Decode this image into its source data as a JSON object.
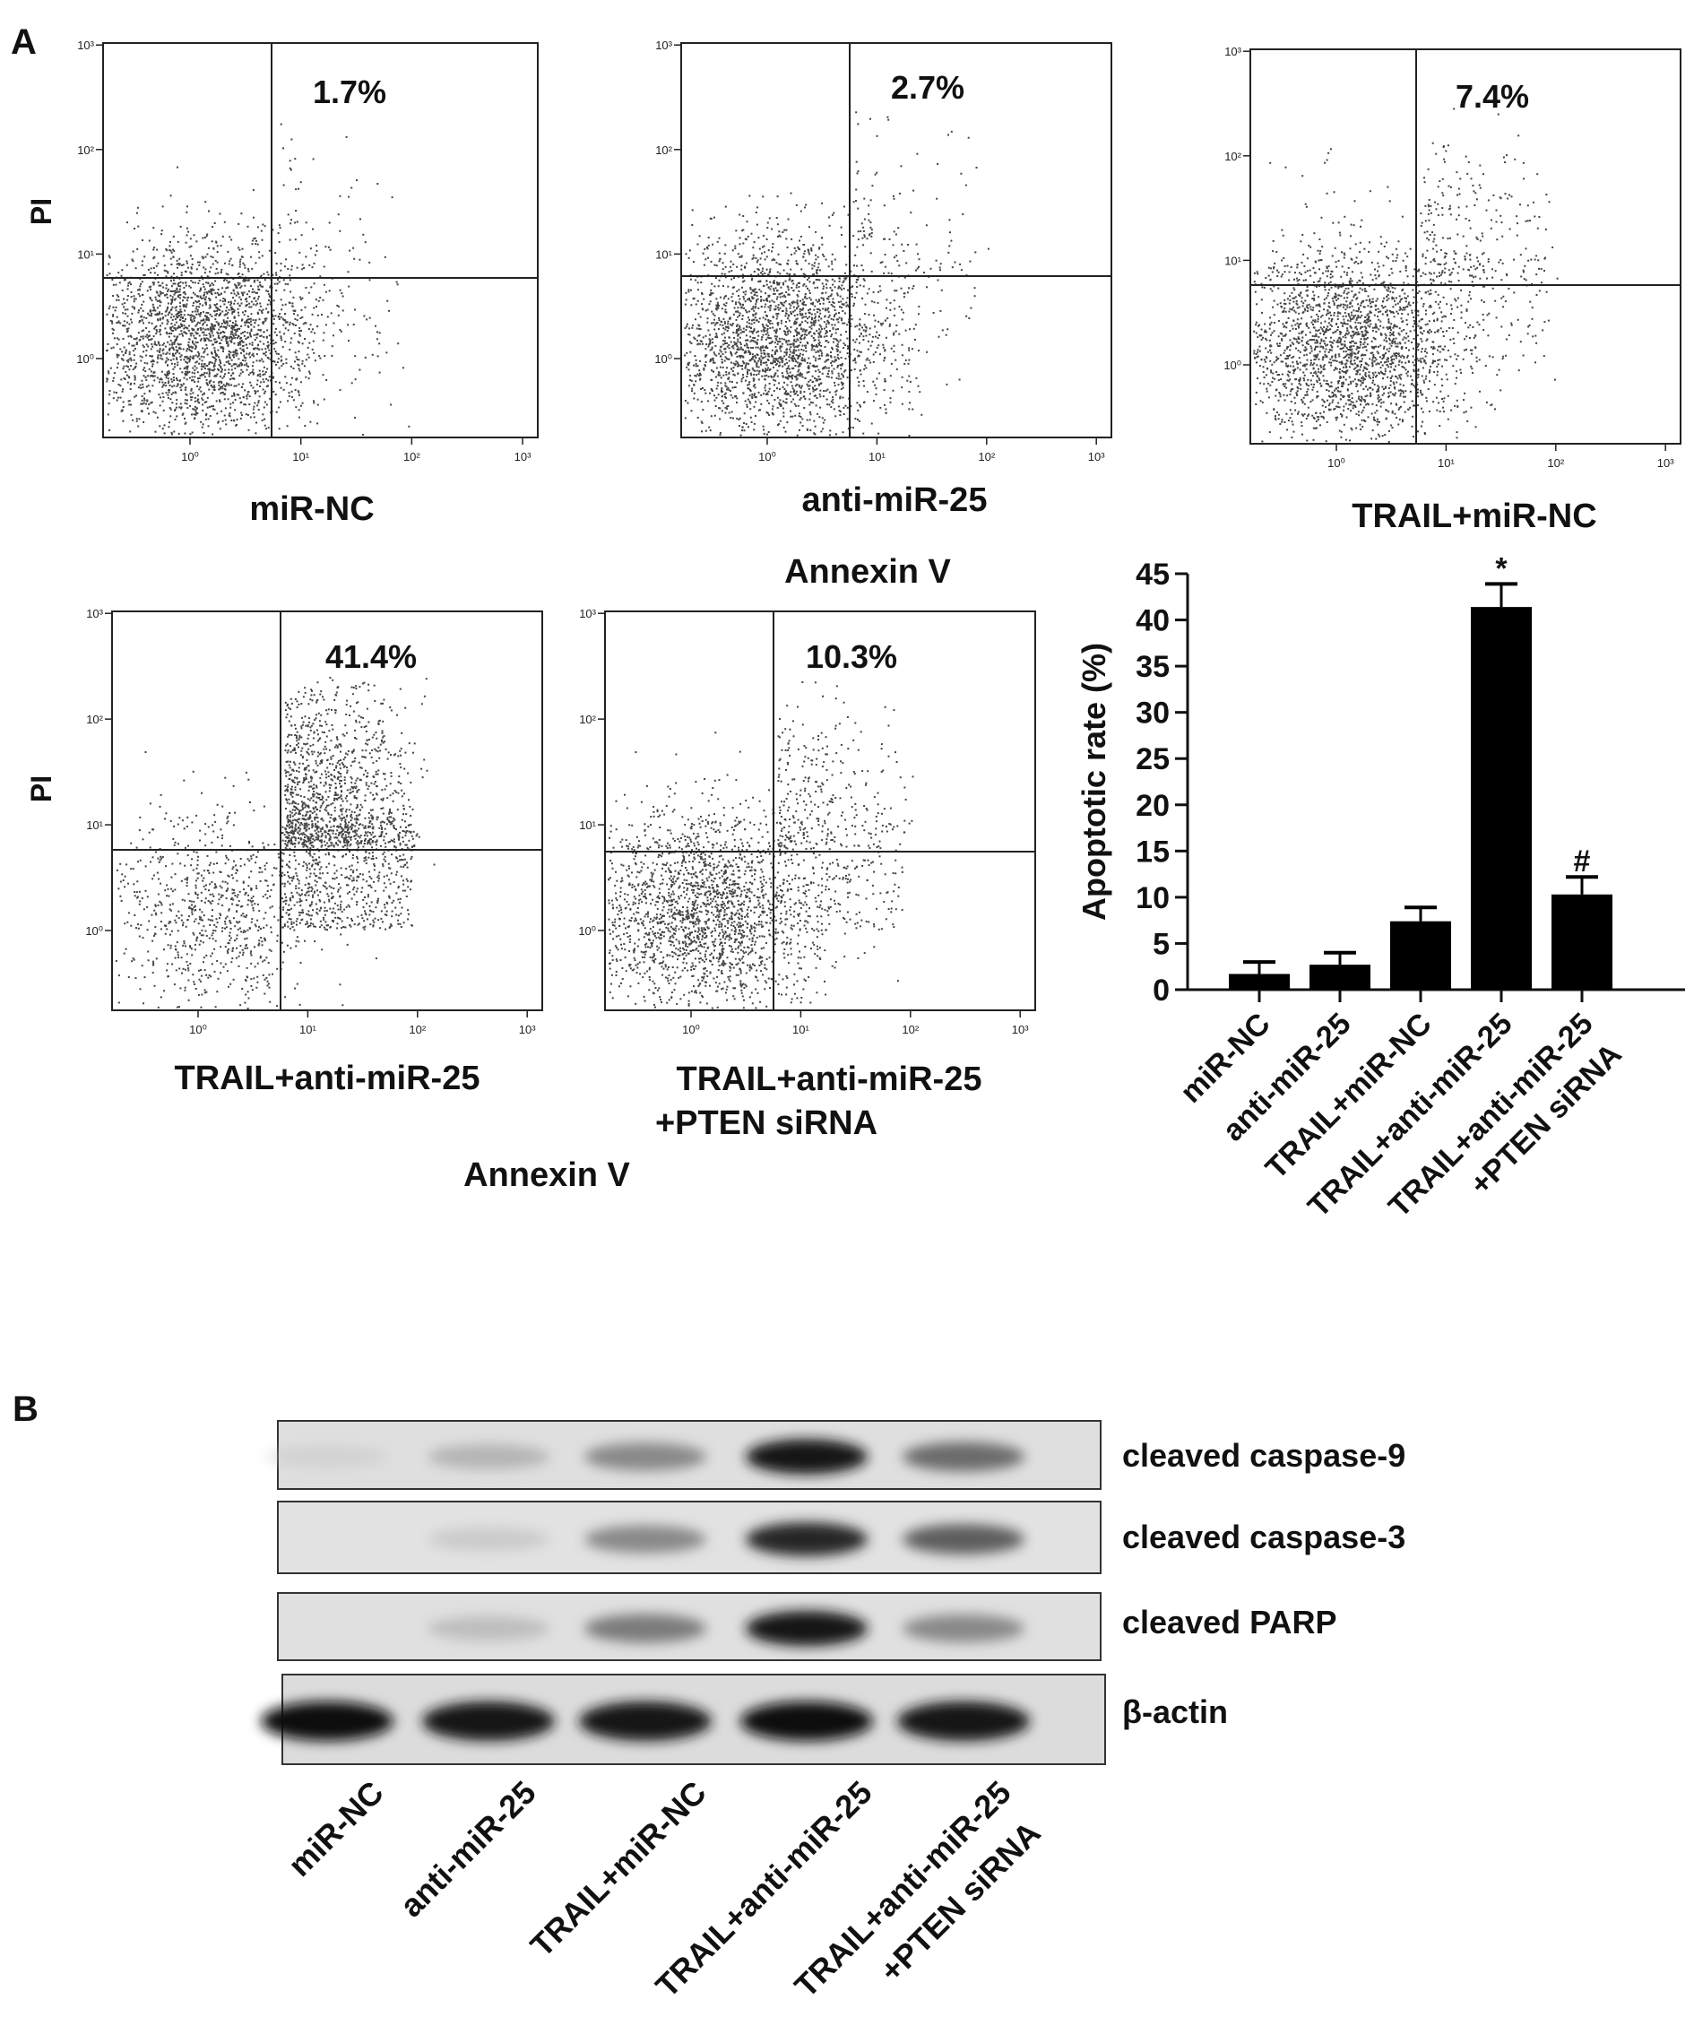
{
  "panel_a": {
    "label": "A",
    "flow_plots": [
      {
        "percent": "1.7%",
        "xlabel": "miR-NC",
        "q_upper_right": 1.7
      },
      {
        "percent": "2.7%",
        "xlabel": "anti-miR-25",
        "q_upper_right": 2.7
      },
      {
        "percent": "7.4%",
        "xlabel": "TRAIL+miR-NC",
        "q_upper_right": 7.4
      },
      {
        "percent": "41.4%",
        "xlabel": "TRAIL+anti-miR-25",
        "q_upper_right": 41.4
      },
      {
        "percent": "10.3%",
        "xlabel": "TRAIL+anti-miR-25",
        "xlabel2": "+PTEN siRNA",
        "q_upper_right": 10.3
      }
    ],
    "flow_axis": {
      "y_label": "PI",
      "x_label": "Annexin V",
      "ticks": [
        "10⁰",
        "10¹",
        "10²",
        "10³"
      ],
      "gate_x": "10^0.55",
      "gate_y": "10^0.6"
    }
  },
  "chart_data": {
    "type": "bar",
    "title": "",
    "xlabel": "",
    "ylabel": "Apoptotic rate (%)",
    "ylim": [
      0,
      45
    ],
    "yticks": [
      "0",
      "5",
      "10",
      "15",
      "20",
      "25",
      "30",
      "35",
      "40",
      "45"
    ],
    "categories": [
      "miR-NC",
      "anti-miR-25",
      "TRAIL+miR-NC",
      "TRAIL+anti-miR-25",
      "TRAIL+anti-miR-25"
    ],
    "category_line2": [
      "",
      "",
      "",
      "",
      "+PTEN siRNA"
    ],
    "values": [
      1.7,
      2.7,
      7.4,
      41.4,
      10.3
    ],
    "errors": [
      1.3,
      1.3,
      1.5,
      2.5,
      1.9
    ],
    "annotations": [
      "",
      "",
      "",
      "*",
      "#"
    ],
    "color": "#000000"
  },
  "panel_b": {
    "label": "B",
    "blots": [
      {
        "label": "cleaved caspase-9",
        "intensities": [
          0.05,
          0.25,
          0.45,
          0.95,
          0.55
        ]
      },
      {
        "label": "cleaved caspase-3",
        "intensities": [
          0.03,
          0.12,
          0.45,
          0.85,
          0.6
        ]
      },
      {
        "label": "cleaved PARP",
        "intensities": [
          0.02,
          0.2,
          0.5,
          0.95,
          0.45
        ]
      },
      {
        "label": "β-actin",
        "intensities": [
          1.0,
          0.95,
          0.95,
          1.0,
          0.95
        ]
      }
    ],
    "lanes": [
      {
        "line1": "miR-NC",
        "line2": ""
      },
      {
        "line1": "anti-miR-25",
        "line2": ""
      },
      {
        "line1": "TRAIL+miR-NC",
        "line2": ""
      },
      {
        "line1": "TRAIL+anti-miR-25",
        "line2": ""
      },
      {
        "line1": "TRAIL+anti-miR-25",
        "line2": "+PTEN siRNA"
      }
    ]
  }
}
